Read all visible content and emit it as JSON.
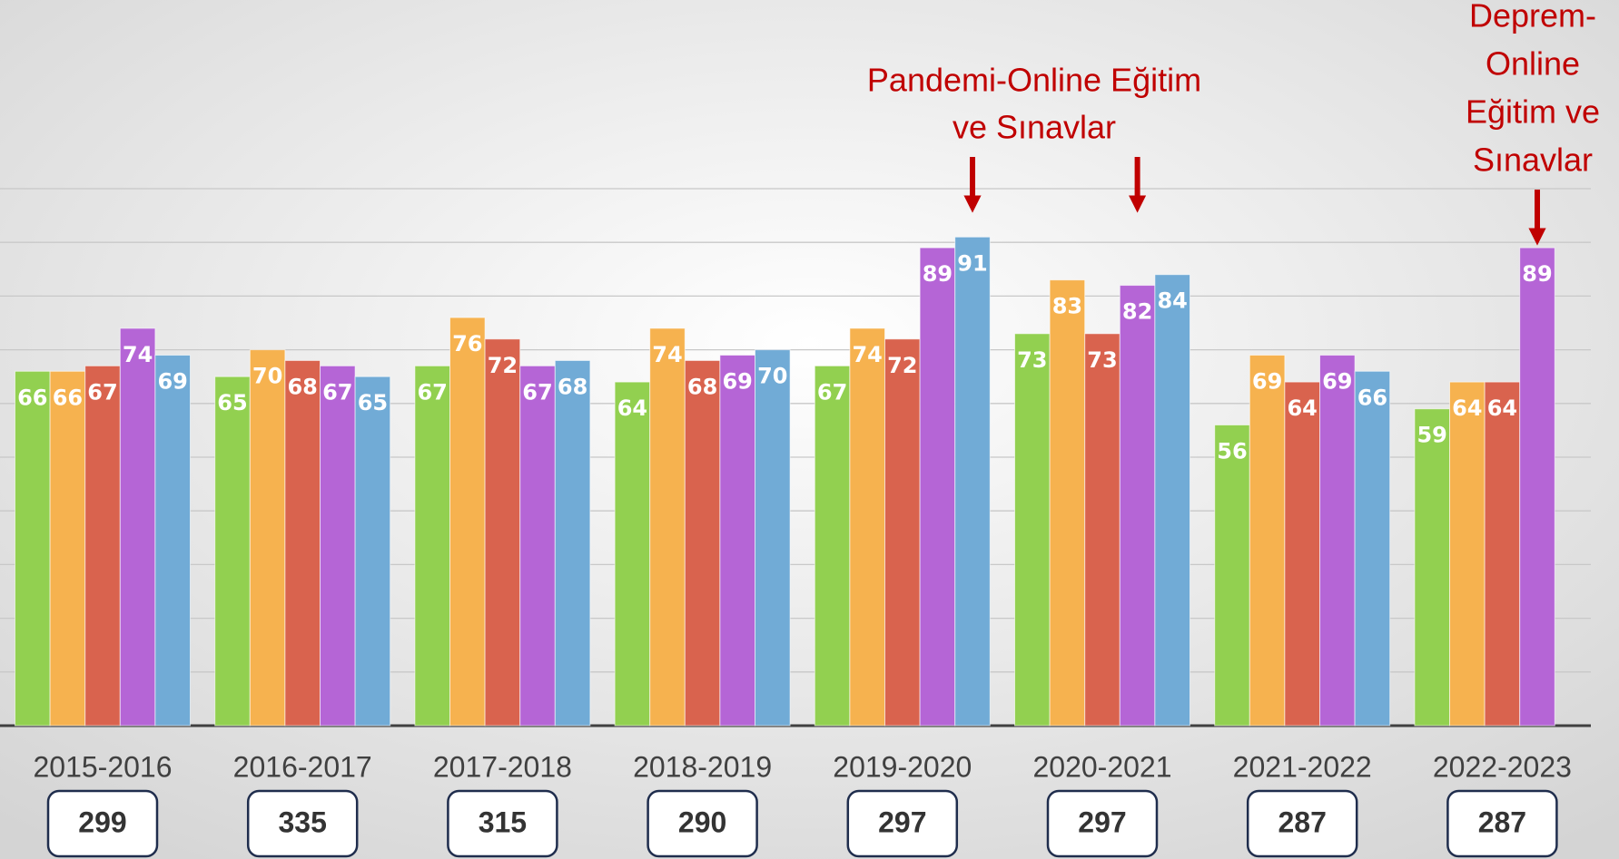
{
  "chart_data": {
    "type": "bar",
    "categories": [
      "2015-2016",
      "2016-2017",
      "2017-2018",
      "2018-2019",
      "2019-2020",
      "2020-2021",
      "2021-2022",
      "2022-2023"
    ],
    "series": [
      {
        "color": "#92d050",
        "values": [
          66,
          65,
          67,
          64,
          67,
          73,
          56,
          59
        ]
      },
      {
        "color": "#f6b24f",
        "values": [
          66,
          70,
          76,
          74,
          74,
          83,
          69,
          64
        ]
      },
      {
        "color": "#d9634e",
        "values": [
          67,
          68,
          72,
          68,
          72,
          73,
          64,
          64
        ]
      },
      {
        "color": "#b565d6",
        "values": [
          74,
          67,
          67,
          69,
          89,
          82,
          69,
          89
        ]
      },
      {
        "color": "#71abd6",
        "values": [
          69,
          65,
          68,
          70,
          91,
          84,
          66,
          null
        ]
      }
    ],
    "totals": [
      "299",
      "335",
      "315",
      "290",
      "297",
      "297",
      "287",
      "287"
    ],
    "annotations": [
      {
        "lines": [
          "Pandemi-Online Eğitim",
          "ve Sınavlar"
        ],
        "color": "#c00000"
      },
      {
        "lines": [
          "Deprem-",
          "Online",
          "Eğitim ve",
          "Sınavlar"
        ],
        "color": "#c00000"
      }
    ],
    "ylim": [
      0,
      100
    ],
    "yticks": [
      0,
      10,
      20,
      30,
      40,
      50,
      60,
      70,
      80,
      90,
      100
    ],
    "grid": true
  }
}
